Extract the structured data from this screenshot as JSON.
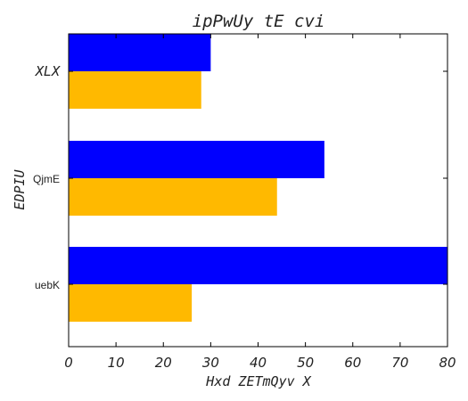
{
  "chart_data": {
    "type": "bar",
    "orientation": "horizontal",
    "title": "ipPwUy tE cvi",
    "xlabel": "Hxd ZETmQyv X",
    "ylabel": "EDPIU",
    "categories": [
      "XLX",
      "QjmE",
      "uebK"
    ],
    "series": [
      {
        "color": "#0000ff",
        "values": [
          30,
          54,
          80
        ]
      },
      {
        "color": "#ffb900",
        "values": [
          28,
          44,
          26
        ]
      }
    ],
    "xlim": [
      0,
      80
    ],
    "xticks": [
      "0",
      "10",
      "20",
      "30",
      "40",
      "50",
      "60",
      "70",
      "80"
    ],
    "grid": false,
    "legend": "none"
  }
}
